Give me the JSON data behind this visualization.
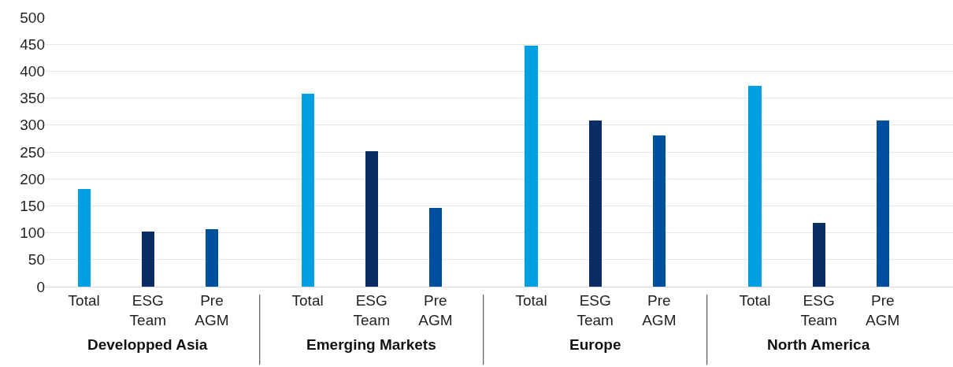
{
  "chart_data": {
    "type": "bar",
    "categories": [
      "Total",
      "ESG\nTeam",
      "Pre\nAGM",
      "Total",
      "ESG\nTeam",
      "Pre\nAGM",
      "Total",
      "ESG\nTeam",
      "Pre\nAGM",
      "Total",
      "ESG\nTeam",
      "Pre\nAGM"
    ],
    "values": [
      181,
      102,
      107,
      358,
      251,
      146,
      447,
      308,
      281,
      373,
      118,
      308
    ],
    "colors": [
      "#009fe3",
      "#0a2d64",
      "#0050a0",
      "#009fe3",
      "#0a2d64",
      "#0050a0",
      "#009fe3",
      "#0a2d64",
      "#0050a0",
      "#009fe3",
      "#0a2d64",
      "#0050a0"
    ],
    "annotations": [
      "Developped Asia",
      "Emerging Markets",
      "Europe",
      "North America"
    ],
    "ylim": [
      0,
      500
    ],
    "yticks": [
      0,
      50,
      100,
      150,
      200,
      250,
      300,
      350,
      400,
      450,
      500
    ],
    "grid": "y",
    "legend": false
  }
}
